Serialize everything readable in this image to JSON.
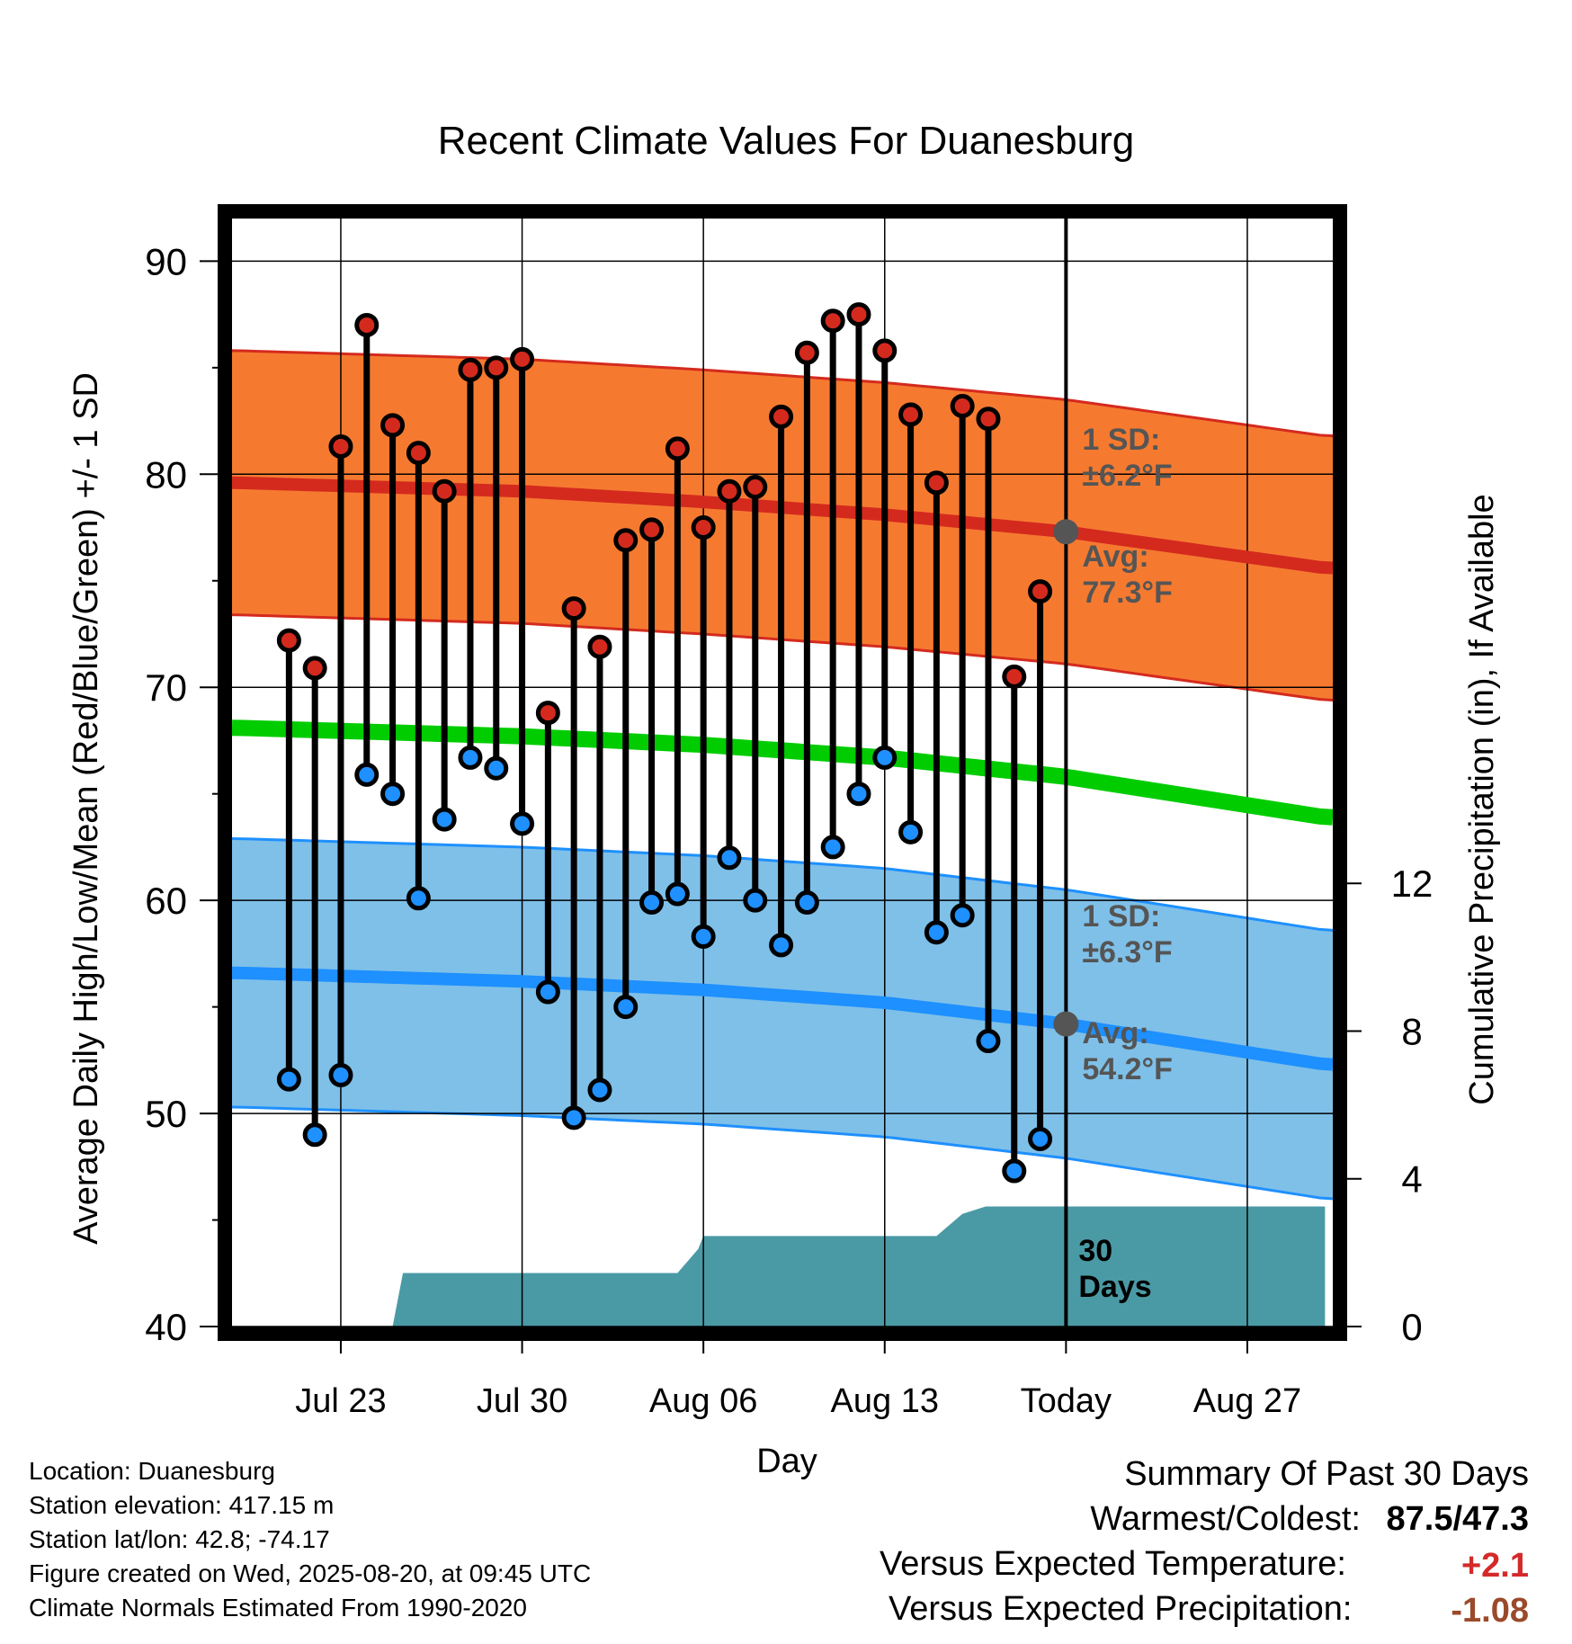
{
  "title": "Recent Climate Values For Duanesburg",
  "chart_data": {
    "type": "line",
    "title": "Recent Climate Values For Duanesburg",
    "xlabel": "Day",
    "ylabel": "Average Daily High/Low/Mean (Red/Blue/Green) +/- 1 SD",
    "y2label": "Cumulative Precipitation (in), If Available",
    "ylim": [
      40,
      92
    ],
    "y2lim": [
      0,
      30
    ],
    "x_range": [
      -32.2,
      10.3
    ],
    "y_ticks": [
      40,
      50,
      60,
      70,
      80,
      90
    ],
    "y2_ticks": [
      0,
      4,
      8,
      12
    ],
    "x_ticks": [
      {
        "label": "Jul 23",
        "day": -28
      },
      {
        "label": "Jul 30",
        "day": -21
      },
      {
        "label": "Aug 06",
        "day": -14
      },
      {
        "label": "Aug 13",
        "day": -7
      },
      {
        "label": "Today",
        "day": 0
      },
      {
        "label": "Aug 27",
        "day": 7
      }
    ],
    "grid": true,
    "series": [
      {
        "name": "High",
        "color": "#cc2222",
        "days": [
          -30,
          -29,
          -28,
          -27,
          -26,
          -25,
          -24,
          -23,
          -22,
          -21,
          -20,
          -19,
          -18,
          -17,
          -16,
          -15,
          -14,
          -13,
          -12,
          -11,
          -10,
          -9,
          -8,
          -7,
          -6,
          -5,
          -4,
          -3,
          -2,
          -1
        ],
        "values": [
          72.2,
          70.9,
          81.3,
          87.0,
          82.3,
          81.0,
          79.2,
          84.9,
          85.0,
          85.4,
          68.8,
          73.7,
          71.9,
          76.9,
          77.4,
          81.2,
          77.5,
          79.2,
          79.4,
          82.7,
          85.7,
          87.2,
          87.5,
          85.8,
          82.8,
          79.6,
          83.2,
          82.6,
          70.5,
          74.5
        ]
      },
      {
        "name": "Low",
        "color": "#1e90ff",
        "days": [
          -30,
          -29,
          -28,
          -27,
          -26,
          -25,
          -24,
          -23,
          -22,
          -21,
          -20,
          -19,
          -18,
          -17,
          -16,
          -15,
          -14,
          -13,
          -12,
          -11,
          -10,
          -9,
          -8,
          -7,
          -6,
          -5,
          -4,
          -3,
          -2,
          -1
        ],
        "values": [
          51.6,
          49.0,
          51.8,
          65.9,
          65.0,
          60.1,
          63.8,
          66.7,
          66.2,
          63.6,
          55.7,
          49.8,
          51.1,
          55.0,
          59.9,
          60.3,
          58.3,
          62.0,
          60.0,
          57.9,
          59.9,
          62.5,
          65.0,
          66.7,
          63.2,
          58.5,
          59.3,
          53.4,
          47.3,
          48.8
        ]
      },
      {
        "name": "Normal High",
        "color": "#cc2222",
        "days": [
          -32,
          -21,
          -14,
          -7,
          0,
          10
        ],
        "values": [
          79.6,
          79.2,
          78.7,
          78.1,
          77.3,
          75.6
        ],
        "sd": 6.2
      },
      {
        "name": "Normal Low",
        "color": "#1e90ff",
        "days": [
          -32,
          -21,
          -14,
          -7,
          0,
          10
        ],
        "values": [
          56.6,
          56.2,
          55.8,
          55.2,
          54.2,
          52.3
        ],
        "sd": 6.3
      },
      {
        "name": "Normal Mean",
        "color": "#00cc00",
        "days": [
          -32,
          -21,
          -14,
          -7,
          0,
          10
        ],
        "values": [
          68.1,
          67.7,
          67.3,
          66.7,
          65.8,
          63.9
        ]
      },
      {
        "name": "Cumulative Precipitation",
        "color": "#4a9aa5",
        "axis": "y2",
        "type": "area",
        "days": [
          -26,
          -25.6,
          -24,
          -22,
          -21.6,
          -21,
          -18.5,
          -17,
          -16,
          -15,
          -14.2,
          -14,
          -12,
          -10,
          -8,
          -6.5,
          -5.9,
          -5,
          -4,
          -3.1,
          -2,
          10
        ],
        "values": [
          0,
          1.45,
          1.45,
          1.45,
          1.45,
          1.45,
          1.45,
          1.45,
          1.45,
          1.45,
          2.1,
          2.45,
          2.45,
          2.45,
          2.45,
          2.45,
          2.45,
          2.45,
          3.05,
          3.25,
          3.25,
          3.25
        ]
      }
    ],
    "today_marker": {
      "label": "30 Days",
      "high_avg": 77.3,
      "low_avg": 54.2
    },
    "annotations": [
      {
        "text_line1": "1 SD:",
        "text_line2": "±6.2°F"
      },
      {
        "text_line1": "Avg:",
        "text_line2": "77.3°F"
      },
      {
        "text_line1": "1 SD:",
        "text_line2": "±6.3°F"
      },
      {
        "text_line1": "Avg:",
        "text_line2": "54.2°F"
      }
    ],
    "colors": {
      "high_band": "#f57a30",
      "low_band": "#7fc0e8",
      "high_line": "#d42a1e",
      "low_line": "#1e90ff",
      "mean_line": "#00cc00",
      "precip": "#4a9aa5",
      "avg_dot": "#555555"
    }
  },
  "info": {
    "location": "Location: Duanesburg",
    "elevation": "Station elevation: 417.15 m",
    "latlon": "Station lat/lon: 42.8; -74.17",
    "created": "Figure created on Wed, 2025-08-20, at 09:45 UTC",
    "normals": "Climate Normals Estimated From 1990-2020"
  },
  "summary": {
    "heading": "Summary Of Past 30 Days",
    "warm_label": "Warmest/Coldest:",
    "warm_value": "87.5/47.3",
    "temp_label": "Versus Expected Temperature:",
    "temp_value": "+2.1",
    "temp_color": "#d42a2a",
    "precip_label": "Versus Expected Precipitation:",
    "precip_value": "-1.08",
    "precip_color": "#9a4a2a"
  }
}
